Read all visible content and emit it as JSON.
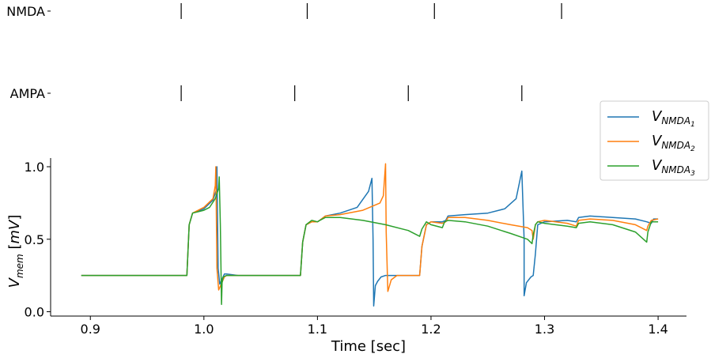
{
  "chart_data": {
    "type": "line",
    "xlabel": "Time [sec]",
    "ylabel_main": "V",
    "ylabel_sub": "mem",
    "ylabel_unit_open": " [",
    "ylabel_unit": "mV",
    "ylabel_unit_close": "]",
    "xlim": [
      0.865,
      1.425
    ],
    "ylim": [
      -0.03,
      1.06
    ],
    "xticks": [
      0.9,
      1.0,
      1.1,
      1.2,
      1.3,
      1.4
    ],
    "xtick_labels": [
      "0.9",
      "1.0",
      "1.1",
      "1.2",
      "1.3",
      "1.4"
    ],
    "yticks": [
      0.0,
      0.5,
      1.0
    ],
    "ytick_labels": [
      "0.0",
      "0.5",
      "1.0"
    ],
    "grid": false,
    "legend_placement": "right",
    "spike_raster": [
      {
        "label": "NMDA",
        "times": [
          0.98,
          1.091,
          1.203,
          1.315
        ]
      },
      {
        "label": "AMPA",
        "times": [
          0.98,
          1.08,
          1.18,
          1.28
        ]
      }
    ],
    "series": [
      {
        "name_main": "V",
        "name_sub": "NMDA",
        "name_subsub": "1",
        "color": "#1f77b4",
        "x": [
          0.892,
          0.985,
          0.987,
          0.99,
          1.0,
          1.008,
          1.011,
          1.0115,
          1.0125,
          1.014,
          1.018,
          1.02,
          1.03,
          1.04,
          1.06,
          1.08,
          1.085,
          1.087,
          1.09,
          1.095,
          1.1,
          1.102,
          1.107,
          1.12,
          1.135,
          1.145,
          1.148,
          1.149,
          1.1495,
          1.151,
          1.153,
          1.156,
          1.16,
          1.18,
          1.19,
          1.192,
          1.196,
          1.2,
          1.21,
          1.213,
          1.215,
          1.23,
          1.25,
          1.265,
          1.275,
          1.28,
          1.282,
          1.282,
          1.284,
          1.288,
          1.29,
          1.292,
          1.294,
          1.3,
          1.32,
          1.328,
          1.33,
          1.34,
          1.36,
          1.38,
          1.39,
          1.394,
          1.396,
          1.4
        ],
        "y": [
          0.25,
          0.25,
          0.6,
          0.68,
          0.71,
          0.77,
          0.84,
          1.0,
          0.3,
          0.19,
          0.26,
          0.26,
          0.25,
          0.25,
          0.25,
          0.25,
          0.25,
          0.48,
          0.6,
          0.62,
          0.62,
          0.63,
          0.66,
          0.68,
          0.72,
          0.83,
          0.92,
          0.5,
          0.04,
          0.18,
          0.21,
          0.24,
          0.25,
          0.25,
          0.25,
          0.45,
          0.6,
          0.62,
          0.62,
          0.63,
          0.66,
          0.67,
          0.68,
          0.71,
          0.78,
          0.97,
          0.5,
          0.11,
          0.2,
          0.24,
          0.25,
          0.4,
          0.6,
          0.62,
          0.63,
          0.62,
          0.65,
          0.66,
          0.65,
          0.64,
          0.62,
          0.61,
          0.64,
          0.64
        ]
      },
      {
        "name_main": "V",
        "name_sub": "NMDA",
        "name_subsub": "2",
        "color": "#ff7f0e",
        "x": [
          0.892,
          0.985,
          0.987,
          0.99,
          1.0,
          1.008,
          1.01,
          1.0105,
          1.0115,
          1.013,
          1.018,
          1.02,
          1.03,
          1.04,
          1.06,
          1.08,
          1.085,
          1.087,
          1.09,
          1.095,
          1.1,
          1.102,
          1.107,
          1.12,
          1.14,
          1.155,
          1.158,
          1.16,
          1.1605,
          1.162,
          1.165,
          1.17,
          1.18,
          1.19,
          1.192,
          1.196,
          1.2,
          1.21,
          1.213,
          1.215,
          1.23,
          1.25,
          1.27,
          1.285,
          1.289,
          1.29,
          1.292,
          1.294,
          1.3,
          1.32,
          1.328,
          1.33,
          1.34,
          1.36,
          1.38,
          1.39,
          1.391,
          1.394,
          1.4
        ],
        "y": [
          0.25,
          0.25,
          0.6,
          0.68,
          0.72,
          0.78,
          0.87,
          1.0,
          0.3,
          0.15,
          0.24,
          0.25,
          0.25,
          0.25,
          0.25,
          0.25,
          0.25,
          0.48,
          0.6,
          0.62,
          0.62,
          0.63,
          0.66,
          0.67,
          0.7,
          0.75,
          0.8,
          1.02,
          0.55,
          0.14,
          0.22,
          0.25,
          0.25,
          0.25,
          0.45,
          0.6,
          0.62,
          0.61,
          0.62,
          0.65,
          0.65,
          0.63,
          0.6,
          0.58,
          0.56,
          0.5,
          0.6,
          0.62,
          0.63,
          0.61,
          0.59,
          0.63,
          0.64,
          0.63,
          0.6,
          0.56,
          0.59,
          0.63,
          0.64
        ]
      },
      {
        "name_main": "V",
        "name_sub": "NMDA",
        "name_subsub": "3",
        "color": "#2ca02c",
        "x": [
          0.892,
          0.985,
          0.987,
          0.99,
          1.0,
          1.005,
          1.01,
          1.013,
          1.0135,
          1.0145,
          1.0155,
          1.016,
          1.017,
          1.02,
          1.03,
          1.04,
          1.06,
          1.08,
          1.085,
          1.087,
          1.09,
          1.095,
          1.1,
          1.102,
          1.107,
          1.12,
          1.14,
          1.16,
          1.18,
          1.19,
          1.192,
          1.196,
          1.2,
          1.21,
          1.212,
          1.215,
          1.23,
          1.25,
          1.27,
          1.285,
          1.289,
          1.29,
          1.292,
          1.294,
          1.3,
          1.32,
          1.328,
          1.33,
          1.34,
          1.36,
          1.38,
          1.39,
          1.391,
          1.394,
          1.4
        ],
        "y": [
          0.25,
          0.25,
          0.6,
          0.68,
          0.7,
          0.72,
          0.78,
          0.85,
          0.93,
          0.6,
          0.05,
          0.2,
          0.24,
          0.25,
          0.25,
          0.25,
          0.25,
          0.25,
          0.25,
          0.48,
          0.6,
          0.63,
          0.62,
          0.63,
          0.65,
          0.65,
          0.63,
          0.6,
          0.56,
          0.52,
          0.57,
          0.62,
          0.6,
          0.58,
          0.62,
          0.63,
          0.62,
          0.59,
          0.54,
          0.5,
          0.47,
          0.53,
          0.6,
          0.62,
          0.61,
          0.59,
          0.58,
          0.61,
          0.62,
          0.6,
          0.55,
          0.48,
          0.55,
          0.62,
          0.62
        ]
      }
    ]
  }
}
